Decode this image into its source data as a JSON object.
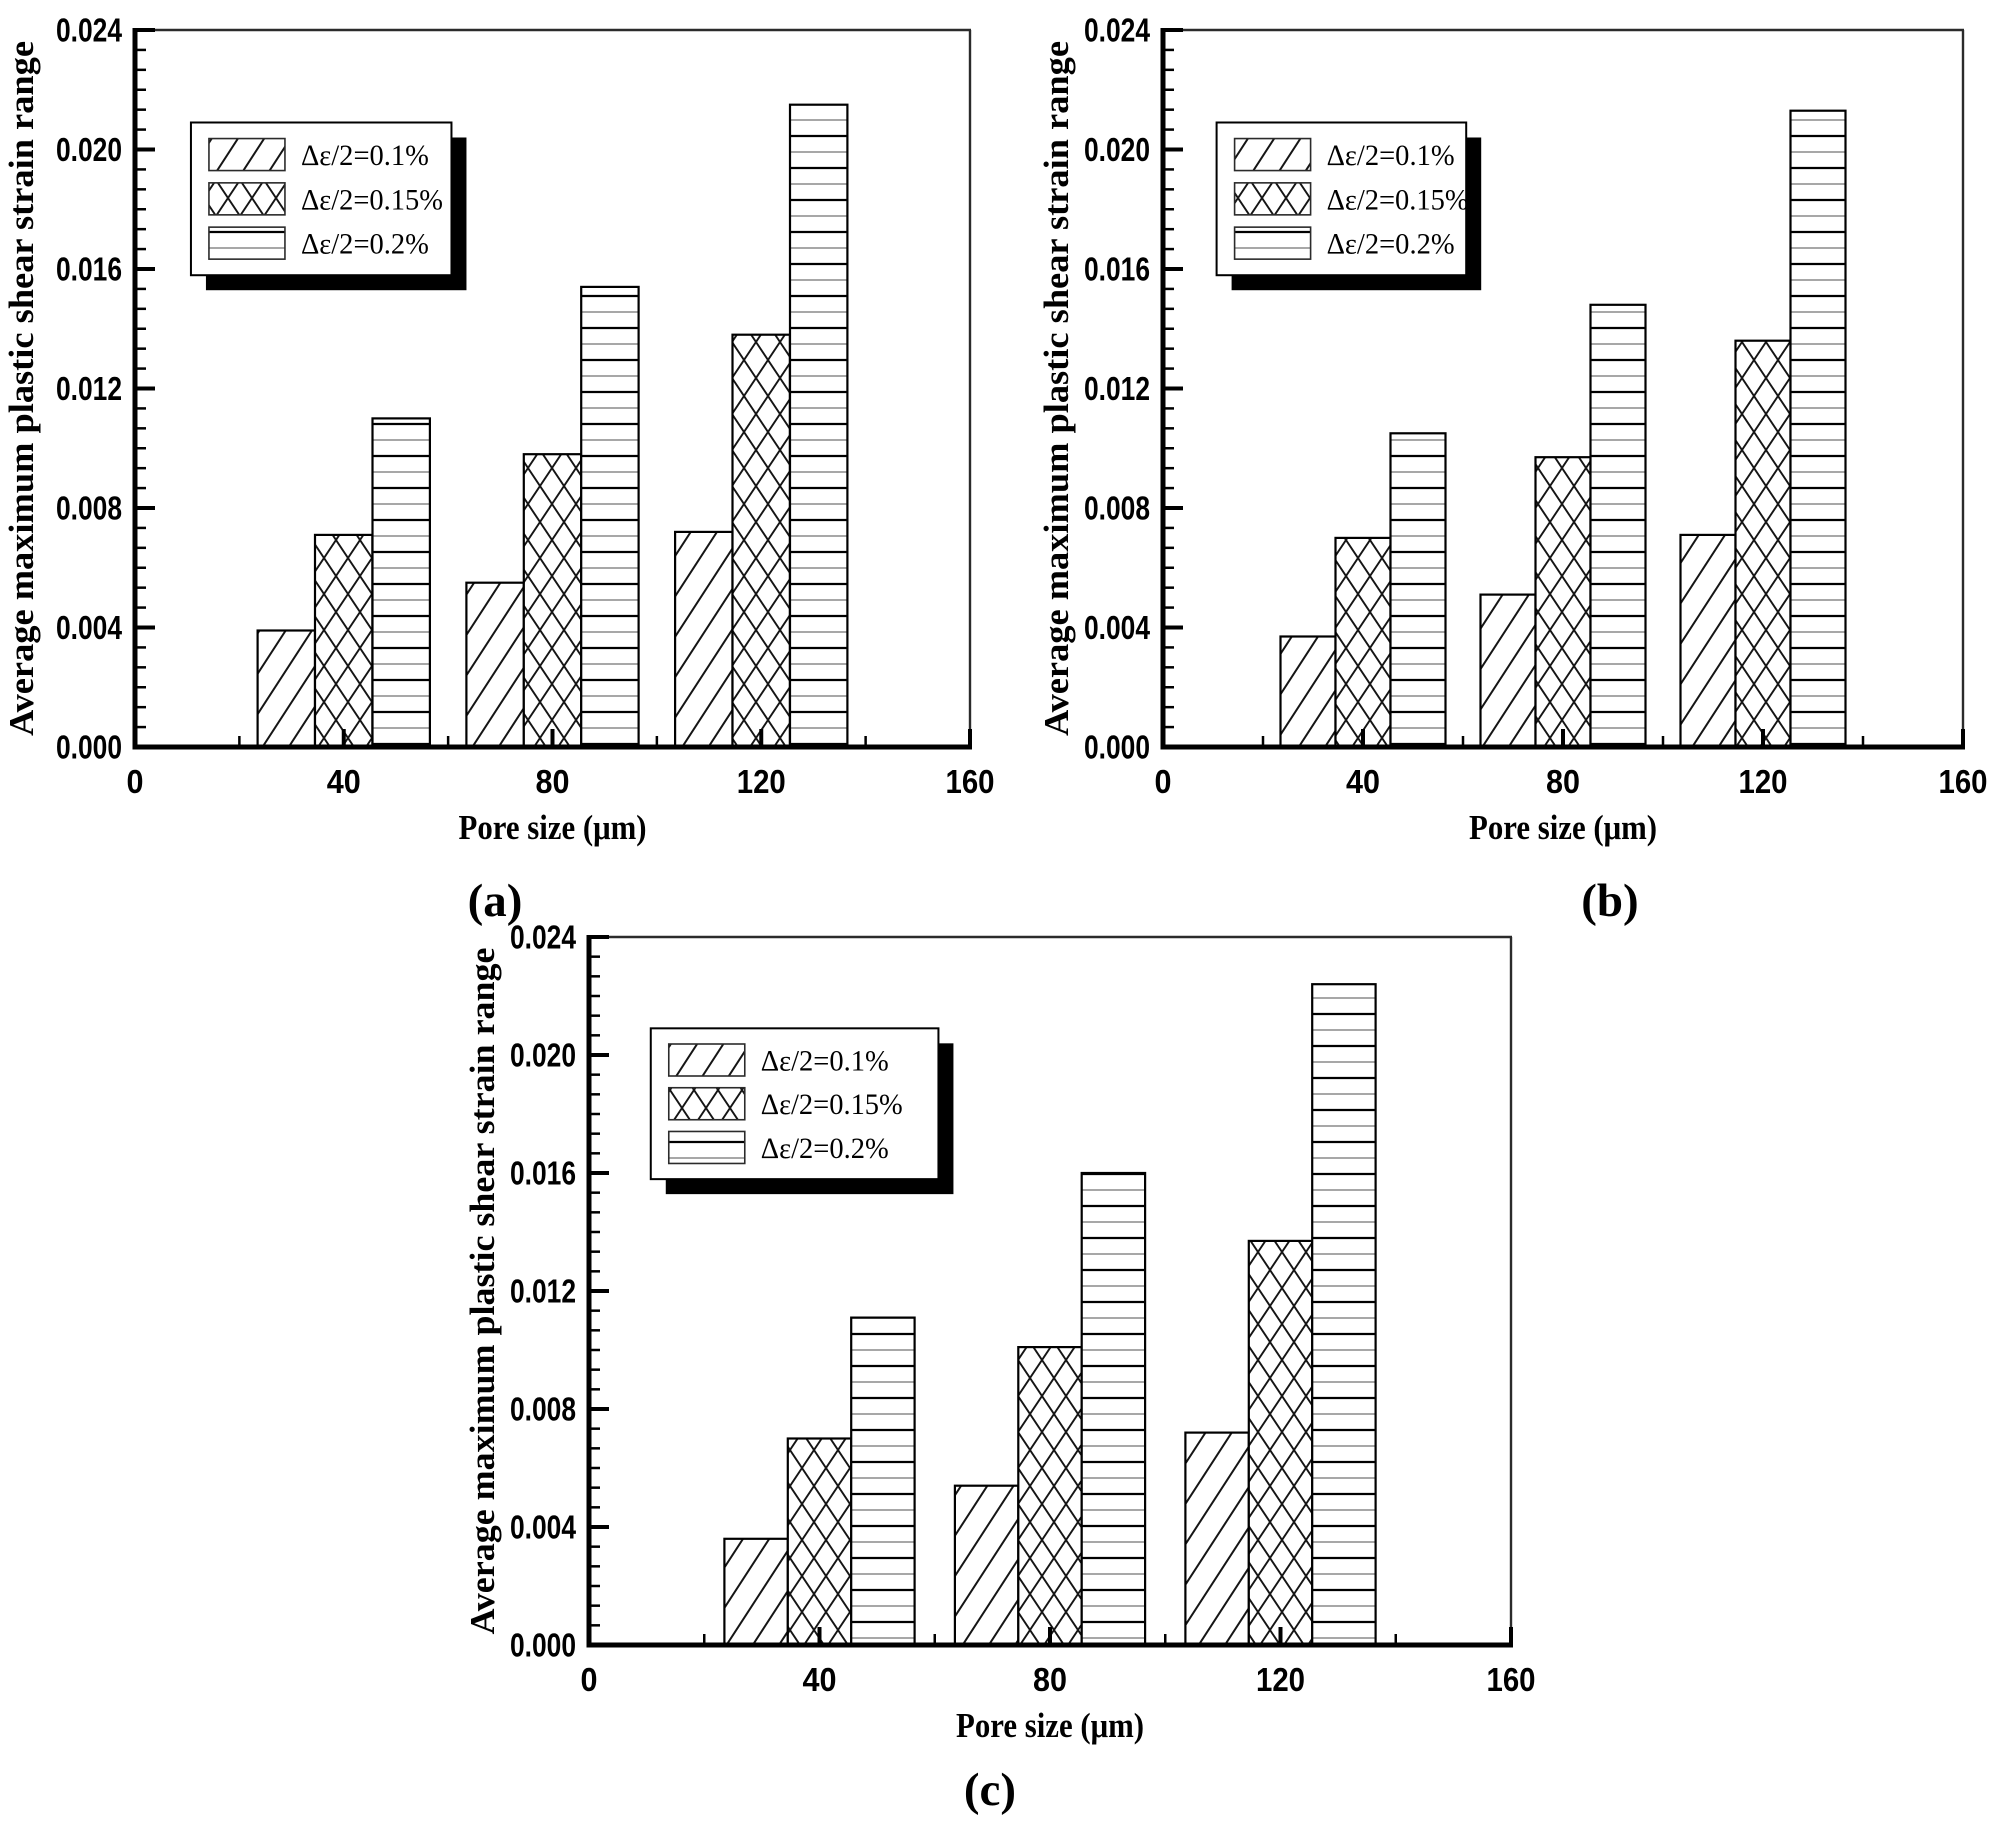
{
  "page": {
    "background": "#ffffff",
    "ink": "#000000"
  },
  "chart_data": [
    {
      "type": "bar",
      "panel": "(a)",
      "xlabel": "Pore size (μm)",
      "ylabel": "Average maximum plastic shear strain range",
      "categories": [
        40,
        80,
        120
      ],
      "series": [
        {
          "name": "Δε/2=0.1%",
          "pattern": "diagonal-hatch",
          "values": [
            0.0039,
            0.0055,
            0.0072
          ]
        },
        {
          "name": "Δε/2=0.15%",
          "pattern": "cross-hatch",
          "values": [
            0.0071,
            0.0098,
            0.0138
          ]
        },
        {
          "name": "Δε/2=0.2%",
          "pattern": "horizontal-lines",
          "values": [
            0.011,
            0.0154,
            0.0215
          ]
        }
      ],
      "xlim": [
        0,
        160
      ],
      "ylim": [
        0,
        0.024
      ],
      "x_major_ticks": [
        0,
        40,
        80,
        120,
        160
      ],
      "x_minor_ticks": [
        20,
        60,
        100,
        140
      ],
      "y_major_step": 0.004,
      "y_minor_divisions": 6,
      "y_tick_decimals": 3,
      "bar_width_x_units": 11,
      "grid": false,
      "legend_position": "upper-left"
    },
    {
      "type": "bar",
      "panel": "(b)",
      "xlabel": "Pore size (μm)",
      "ylabel": "Average maximum plastic shear strain range",
      "categories": [
        40,
        80,
        120
      ],
      "series": [
        {
          "name": "Δε/2=0.1%",
          "pattern": "diagonal-hatch",
          "values": [
            0.0037,
            0.0051,
            0.0071
          ]
        },
        {
          "name": "Δε/2=0.15%",
          "pattern": "cross-hatch",
          "values": [
            0.007,
            0.0097,
            0.0136
          ]
        },
        {
          "name": "Δε/2=0.2%",
          "pattern": "horizontal-lines",
          "values": [
            0.0105,
            0.0148,
            0.0213
          ]
        }
      ],
      "xlim": [
        0,
        160
      ],
      "ylim": [
        0,
        0.024
      ],
      "x_major_ticks": [
        0,
        40,
        80,
        120,
        160
      ],
      "x_minor_ticks": [
        20,
        60,
        100,
        140
      ],
      "y_major_step": 0.004,
      "y_minor_divisions": 6,
      "y_tick_decimals": 3,
      "bar_width_x_units": 11,
      "grid": false,
      "legend_position": "upper-left"
    },
    {
      "type": "bar",
      "panel": "(c)",
      "xlabel": "Pore size (μm)",
      "ylabel": "Average maximum plastic shear strain range",
      "categories": [
        40,
        80,
        120
      ],
      "series": [
        {
          "name": "Δε/2=0.1%",
          "pattern": "diagonal-hatch",
          "values": [
            0.0036,
            0.0054,
            0.0072
          ]
        },
        {
          "name": "Δε/2=0.15%",
          "pattern": "cross-hatch",
          "values": [
            0.007,
            0.0101,
            0.0137
          ]
        },
        {
          "name": "Δε/2=0.2%",
          "pattern": "horizontal-lines",
          "values": [
            0.0111,
            0.016,
            0.0224
          ]
        }
      ],
      "xlim": [
        0,
        160
      ],
      "ylim": [
        0,
        0.024
      ],
      "x_major_ticks": [
        0,
        40,
        80,
        120,
        160
      ],
      "x_minor_ticks": [
        20,
        60,
        100,
        140
      ],
      "y_major_step": 0.004,
      "y_minor_divisions": 6,
      "y_tick_decimals": 3,
      "bar_width_x_units": 11,
      "grid": false,
      "legend_position": "upper-left"
    }
  ]
}
